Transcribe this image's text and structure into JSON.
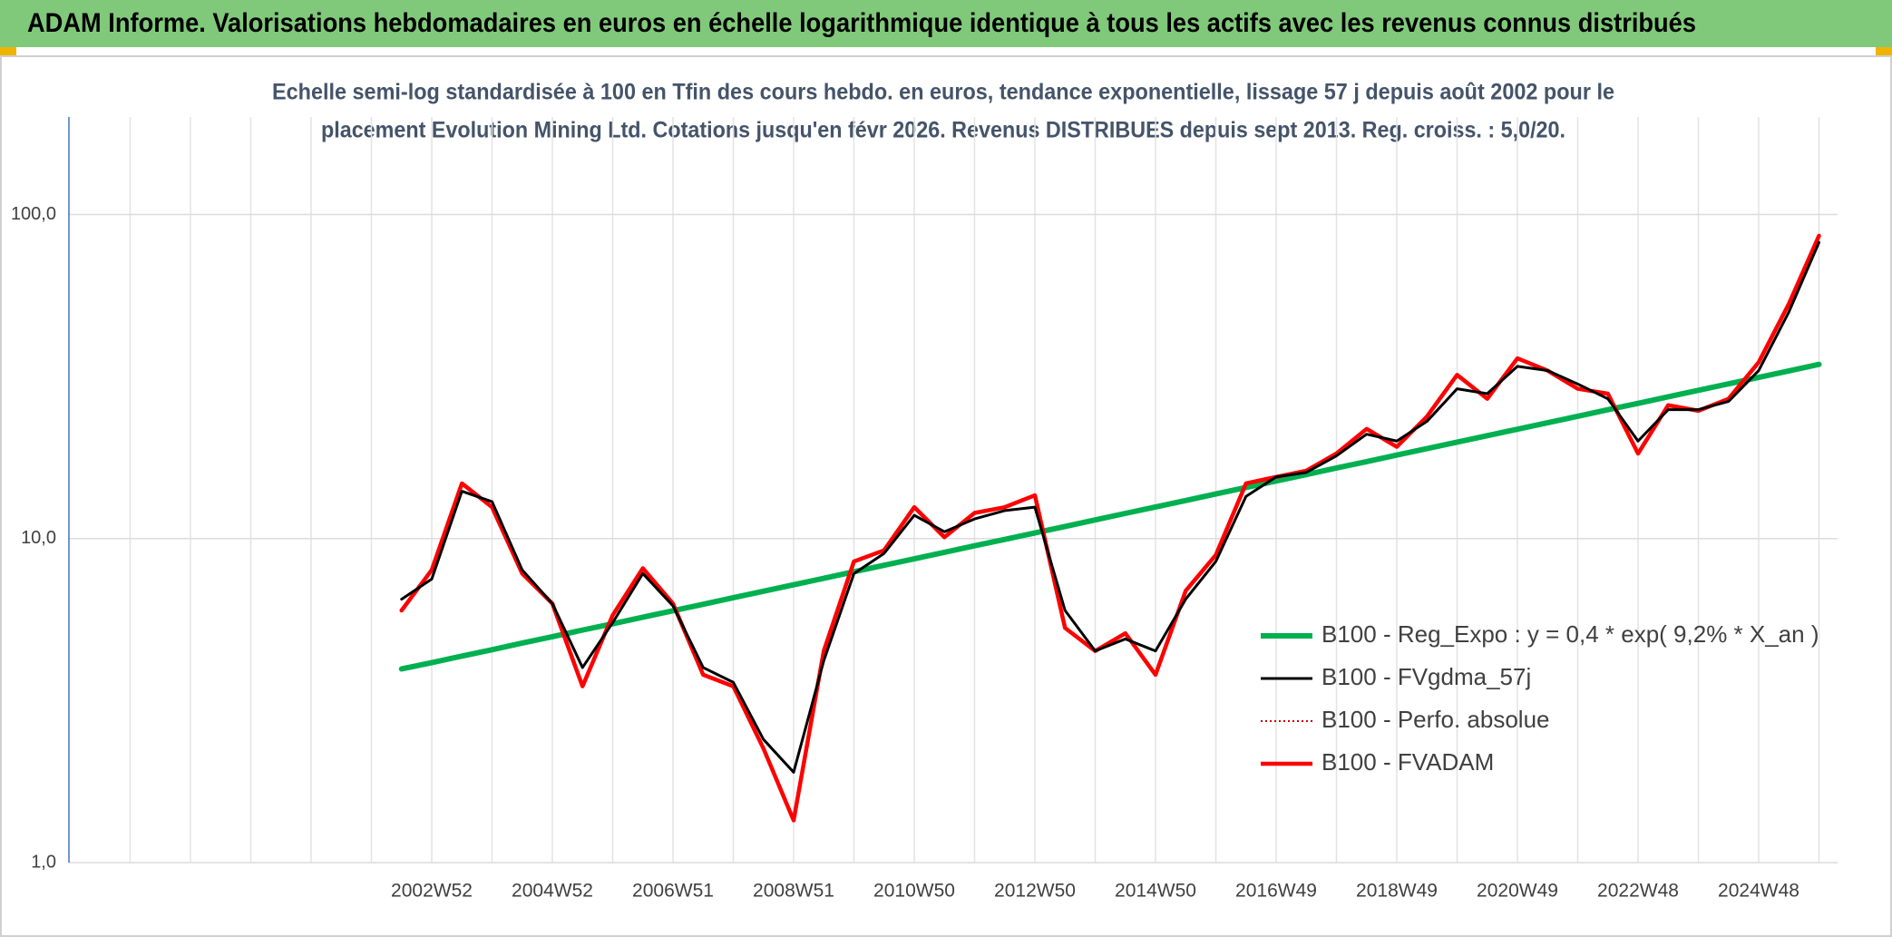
{
  "chart_data": {
    "type": "line",
    "title": "ADAM Informe. Valorisations hebdomadaires en euros en échelle logarithmique identique à tous les actifs avec les revenus connus distribués",
    "subtitle": [
      "Echelle semi-log standardisée à 100 en Tfin des cours hebdo. en euros, tendance exponentielle, lissage 57 j depuis août 2002 pour le",
      "placement Evolution Mining Ltd. Cotations jusqu'en févr 2026. Revenus DISTRIBUES depuis sept 2013. Reg. croiss. : 5,0/20."
    ],
    "categories": [
      null,
      "2002W52",
      null,
      null,
      null,
      "2004W52",
      null,
      null,
      null,
      "2006W51",
      null,
      null,
      null,
      "2008W51",
      null,
      null,
      null,
      "2010W50",
      null,
      null,
      null,
      "2012W50",
      null,
      null,
      null,
      "2014W50",
      null,
      null,
      null,
      "2016W49",
      null,
      null,
      null,
      "2018W49",
      null,
      null,
      null,
      "2020W49",
      null,
      null,
      null,
      "2022W48",
      null,
      null,
      null,
      "2024W48",
      null,
      null
    ],
    "ylim": [
      1,
      200
    ],
    "yscale": "log",
    "yticks": [
      {
        "value": 1,
        "label": "1,0"
      },
      {
        "value": 10,
        "label": "10,0"
      },
      {
        "value": 100,
        "label": "100,0"
      }
    ],
    "grid": true,
    "legend": "lower right",
    "series": [
      {
        "name": "B100 - Reg_Expo : y = 0,4 * exp( 9,2% *  X_an )",
        "color": "#00b050",
        "style": "solid",
        "values": [
          3.96,
          4.14,
          4.34,
          4.54,
          4.76,
          4.98,
          5.22,
          5.46,
          5.72,
          5.99,
          6.27,
          6.57,
          6.88,
          7.2,
          7.54,
          7.9,
          8.27,
          8.66,
          9.07,
          9.5,
          9.94,
          10.41,
          10.9,
          11.42,
          11.96,
          12.52,
          13.11,
          13.73,
          14.38,
          15.05,
          15.76,
          16.51,
          17.28,
          18.1,
          18.95,
          19.84,
          20.78,
          21.76,
          22.78,
          23.85,
          24.98,
          26.15,
          27.39,
          28.68,
          30.03,
          31.44,
          32.92,
          34.48
        ]
      },
      {
        "name": "B100 - FVgdma_57j",
        "color": "#000000",
        "style": "solid",
        "values": [
          6.5,
          7.5,
          14,
          13,
          8,
          6.3,
          4.0,
          5.5,
          7.8,
          6.2,
          4.0,
          3.6,
          2.4,
          1.9,
          4.2,
          7.8,
          9.0,
          11.8,
          10.5,
          11.5,
          12.2,
          12.5,
          6.0,
          4.5,
          4.9,
          4.5,
          6.5,
          8.5,
          13.5,
          15.5,
          16,
          18,
          21,
          20,
          23,
          29,
          28,
          34,
          33,
          30,
          27,
          20,
          25,
          25,
          26.5,
          33,
          50,
          82
        ]
      },
      {
        "name": "B100 - Perfo. absolue",
        "color": "#c00000",
        "style": "dotted",
        "values": [
          6.0,
          8.0,
          14.8,
          12.5,
          7.8,
          6.3,
          3.5,
          5.8,
          8.1,
          6.3,
          3.8,
          3.5,
          2.25,
          1.35,
          4.5,
          8.5,
          9.2,
          12.5,
          10.1,
          12.0,
          12.5,
          13.6,
          5.3,
          4.5,
          5.1,
          3.8,
          6.9,
          8.9,
          14.8,
          15.5,
          16.2,
          18.3,
          21.8,
          19.2,
          23.8,
          32,
          27,
          36,
          33,
          29,
          28,
          18.3,
          25.8,
          24.8,
          27,
          35,
          53,
          86
        ]
      },
      {
        "name": "B100 - FVADAM",
        "color": "#ff0000",
        "style": "solid",
        "values": [
          6.0,
          8.0,
          14.8,
          12.5,
          7.8,
          6.3,
          3.5,
          5.8,
          8.1,
          6.3,
          3.8,
          3.5,
          2.25,
          1.35,
          4.5,
          8.5,
          9.2,
          12.5,
          10.1,
          12.0,
          12.5,
          13.6,
          5.3,
          4.5,
          5.1,
          3.8,
          6.9,
          8.9,
          14.8,
          15.5,
          16.2,
          18.3,
          21.8,
          19.2,
          23.8,
          32,
          27,
          36,
          33,
          29,
          28,
          18.3,
          25.8,
          24.8,
          27,
          35,
          53,
          86
        ]
      }
    ]
  }
}
